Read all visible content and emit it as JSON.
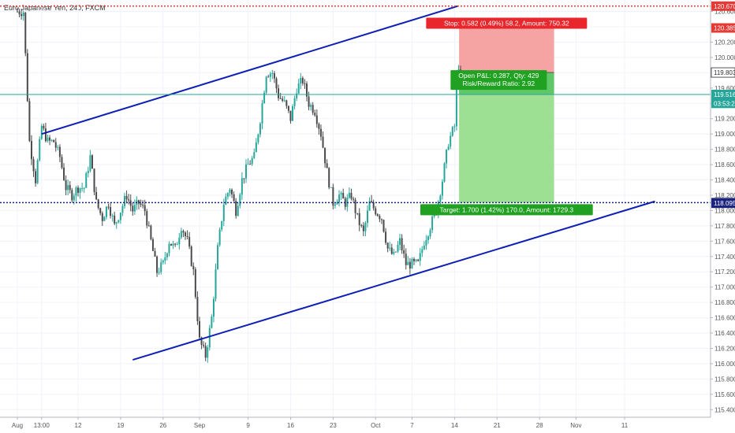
{
  "header": {
    "title": "Euro Japanese Yen, 240, FXCM"
  },
  "chart_data": {
    "type": "candlestick",
    "title": "Euro Japanese Yen, 240, FXCM",
    "ylim": [
      115.3,
      120.75
    ],
    "y_ticks": [
      "115.400",
      "115.600",
      "115.800",
      "116.000",
      "116.200",
      "116.400",
      "116.600",
      "116.800",
      "117.000",
      "117.200",
      "117.400",
      "117.600",
      "117.800",
      "118.000",
      "118.200",
      "118.400",
      "118.600",
      "118.800",
      "119.000",
      "119.200",
      "119.400",
      "119.600",
      "119.800",
      "120.000",
      "120.200",
      "120.400",
      "120.600"
    ],
    "x_ticks": [
      {
        "label": "Aug",
        "day": 0
      },
      {
        "label": "13:00",
        "day": 4
      },
      {
        "label": "12",
        "day": 10
      },
      {
        "label": "19",
        "day": 17
      },
      {
        "label": "26",
        "day": 24
      },
      {
        "label": "Sep",
        "day": 30
      },
      {
        "label": "9",
        "day": 38
      },
      {
        "label": "16",
        "day": 45
      },
      {
        "label": "23",
        "day": 52
      },
      {
        "label": "Oct",
        "day": 59
      },
      {
        "label": "7",
        "day": 65
      },
      {
        "label": "14",
        "day": 72
      },
      {
        "label": "21",
        "day": 79
      },
      {
        "label": "28",
        "day": 86
      },
      {
        "label": "Nov",
        "day": 92
      },
      {
        "label": "11",
        "day": 100
      }
    ],
    "price_path": [
      [
        0,
        120.6
      ],
      [
        1,
        120.6
      ],
      [
        2,
        118.9
      ],
      [
        3,
        118.4
      ],
      [
        4,
        119.1
      ],
      [
        5,
        118.9
      ],
      [
        6,
        118.9
      ],
      [
        7,
        118.7
      ],
      [
        8,
        118.3
      ],
      [
        9,
        118.2
      ],
      [
        10,
        118.3
      ],
      [
        11,
        118.3
      ],
      [
        12,
        118.7
      ],
      [
        13,
        118.1
      ],
      [
        14,
        117.9
      ],
      [
        15,
        118.1
      ],
      [
        16,
        117.8
      ],
      [
        17,
        118.0
      ],
      [
        18,
        118.2
      ],
      [
        19,
        118.0
      ],
      [
        20,
        118.1
      ],
      [
        21,
        118.0
      ],
      [
        22,
        117.6
      ],
      [
        23,
        117.2
      ],
      [
        24,
        117.3
      ],
      [
        25,
        117.6
      ],
      [
        26,
        117.5
      ],
      [
        27,
        117.8
      ],
      [
        28,
        117.6
      ],
      [
        29,
        117.2
      ],
      [
        30,
        116.3
      ],
      [
        31,
        116.1
      ],
      [
        32,
        116.6
      ],
      [
        33,
        117.5
      ],
      [
        34,
        118.1
      ],
      [
        35,
        118.3
      ],
      [
        36,
        118.0
      ],
      [
        37,
        118.4
      ],
      [
        38,
        118.6
      ],
      [
        39,
        118.7
      ],
      [
        40,
        119.2
      ],
      [
        41,
        119.8
      ],
      [
        42,
        119.8
      ],
      [
        43,
        119.5
      ],
      [
        44,
        119.4
      ],
      [
        45,
        119.2
      ],
      [
        46,
        119.6
      ],
      [
        47,
        119.7
      ],
      [
        48,
        119.4
      ],
      [
        49,
        119.3
      ],
      [
        50,
        119.0
      ],
      [
        51,
        118.5
      ],
      [
        52,
        118.1
      ],
      [
        53,
        118.2
      ],
      [
        54,
        118.1
      ],
      [
        55,
        118.2
      ],
      [
        56,
        117.9
      ],
      [
        57,
        117.7
      ],
      [
        58,
        118.1
      ],
      [
        59,
        118.0
      ],
      [
        60,
        117.9
      ],
      [
        61,
        117.5
      ],
      [
        62,
        117.4
      ],
      [
        63,
        117.6
      ],
      [
        64,
        117.3
      ],
      [
        65,
        117.3
      ],
      [
        66,
        117.3
      ],
      [
        67,
        117.6
      ],
      [
        68,
        117.8
      ],
      [
        69,
        118.0
      ],
      [
        70,
        118.4
      ],
      [
        71,
        118.9
      ],
      [
        72,
        119.1
      ],
      [
        72.6,
        119.95
      ],
      [
        73,
        119.6
      ]
    ],
    "annotations": [
      {
        "type": "price_line",
        "label": "120.670",
        "value": 120.67,
        "color": "#e53935",
        "style": "dotted"
      },
      {
        "type": "price_label",
        "label": "120.385",
        "value": 120.385,
        "color": "#e53935"
      },
      {
        "type": "price_label",
        "label": "119.803",
        "value": 119.803,
        "color": "#555555"
      },
      {
        "type": "price_line",
        "label": "119.516",
        "value": 119.516,
        "color": "#26a69a",
        "style": "solid"
      },
      {
        "type": "price_label",
        "label": "03:53:23",
        "value": 119.4,
        "color": "#26a69a"
      },
      {
        "type": "price_line",
        "label": "118.103",
        "value": 118.103,
        "color": "#1a237e",
        "style": "dotted"
      },
      {
        "type": "price_label",
        "label": "118.095",
        "value": 118.095,
        "color": "#1a237e"
      }
    ],
    "channel_lines": [
      {
        "from": {
          "day": 4,
          "price": 119.0
        },
        "to": {
          "day": 72.5,
          "price": 120.67
        },
        "color": "#0d1fb5"
      },
      {
        "from": {
          "day": 19,
          "price": 116.05
        },
        "to": {
          "day": 105,
          "price": 118.12
        },
        "color": "#0d1fb5"
      }
    ],
    "position": {
      "stop_price": 120.385,
      "entry_price": 119.803,
      "target_price": 118.103,
      "start_day": 73,
      "end_day": 88,
      "stop_text": "Stop: 0.582 (0.49%) 58.2, Amount: 750.32",
      "open_pl_text": "Open P&L: 0.287, Qty: 429",
      "risk_reward_text": "Risk/Reward Ratio: 2.92",
      "target_text": "Target: 1.700 (1.42%) 170.0, Amount: 1729.3"
    },
    "colors": {
      "up": "#26a69a",
      "down": "#4a4a4a",
      "stop_zone": "#f5a3a3",
      "target_zone": "#9ddf93",
      "stop_label": "#e8262b",
      "target_label": "#21a121",
      "grid": "#f0f3fa"
    },
    "grid": true
  }
}
